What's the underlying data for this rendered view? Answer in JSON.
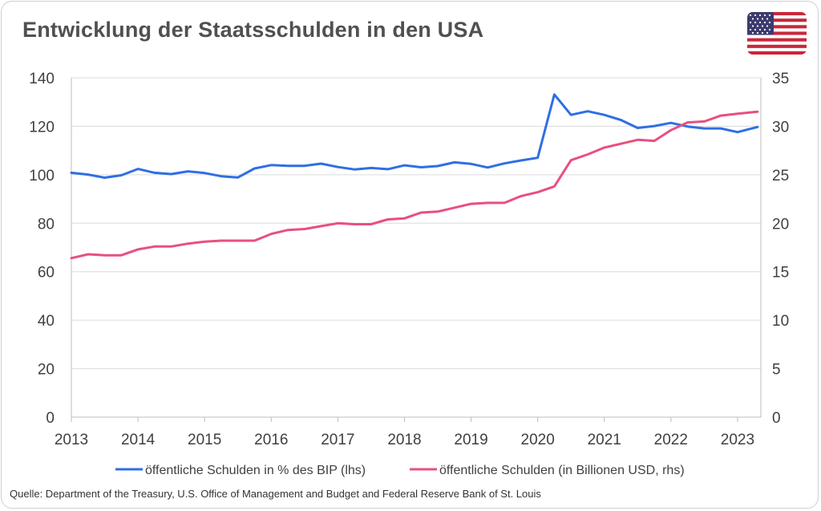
{
  "header": {
    "title": "Entwicklung der Staatsschulden in den USA",
    "flag_icon": "us-flag-icon"
  },
  "footer": {
    "source": "Quelle: Department of the Treasury, U.S. Office of Management and Budget and Federal Reserve Bank of St. Louis"
  },
  "chart_data": {
    "type": "line",
    "title": "Entwicklung der Staatsschulden in den USA",
    "x_ticks": [
      "2013",
      "2014",
      "2015",
      "2016",
      "2017",
      "2018",
      "2019",
      "2020",
      "2021",
      "2022",
      "2023"
    ],
    "x_range": [
      2013,
      2023.35
    ],
    "y_left": {
      "range": [
        0,
        140
      ],
      "ticks": [
        "0",
        "20",
        "40",
        "60",
        "80",
        "100",
        "120",
        "140"
      ]
    },
    "y_right": {
      "range": [
        0,
        35
      ],
      "ticks": [
        "0",
        "5",
        "10",
        "15",
        "20",
        "25",
        "30",
        "35"
      ]
    },
    "grid": true,
    "legend_position": "bottom",
    "series": [
      {
        "name": "öffentliche Schulden in % des BIP (lhs)",
        "axis": "left",
        "color": "#2f6fe3",
        "x": [
          2013.0,
          2013.25,
          2013.5,
          2013.75,
          2014.0,
          2014.25,
          2014.5,
          2014.75,
          2015.0,
          2015.25,
          2015.5,
          2015.75,
          2016.0,
          2016.25,
          2016.5,
          2016.75,
          2017.0,
          2017.25,
          2017.5,
          2017.75,
          2018.0,
          2018.25,
          2018.5,
          2018.75,
          2019.0,
          2019.25,
          2019.5,
          2019.75,
          2020.0,
          2020.25,
          2020.5,
          2020.75,
          2021.0,
          2021.25,
          2021.5,
          2021.75,
          2022.0,
          2022.25,
          2022.5,
          2022.75,
          2023.0,
          2023.3
        ],
        "values": [
          100.8,
          100.1,
          98.8,
          99.8,
          102.4,
          100.8,
          100.3,
          101.4,
          100.7,
          99.4,
          98.9,
          102.6,
          104.0,
          103.7,
          103.7,
          104.6,
          103.2,
          102.2,
          102.8,
          102.3,
          103.9,
          103.1,
          103.6,
          105.1,
          104.5,
          103.0,
          104.7,
          105.9,
          107.0,
          133.1,
          124.7,
          126.2,
          124.7,
          122.6,
          119.3,
          120.1,
          121.4,
          119.9,
          119.1,
          119.1,
          117.6,
          119.7
        ]
      },
      {
        "name": "öffentliche Schulden (in Billionen USD, rhs)",
        "axis": "right",
        "color": "#e8507e",
        "x": [
          2013.0,
          2013.25,
          2013.5,
          2013.75,
          2014.0,
          2014.25,
          2014.5,
          2014.75,
          2015.0,
          2015.25,
          2015.5,
          2015.75,
          2016.0,
          2016.25,
          2016.5,
          2016.75,
          2017.0,
          2017.25,
          2017.5,
          2017.75,
          2018.0,
          2018.25,
          2018.5,
          2018.75,
          2019.0,
          2019.25,
          2019.5,
          2019.75,
          2020.0,
          2020.25,
          2020.5,
          2020.75,
          2021.0,
          2021.25,
          2021.5,
          2021.75,
          2022.0,
          2022.25,
          2022.5,
          2022.75,
          2023.0,
          2023.3
        ],
        "values": [
          16.4,
          16.8,
          16.7,
          16.7,
          17.3,
          17.6,
          17.6,
          17.9,
          18.1,
          18.2,
          18.2,
          18.2,
          18.9,
          19.3,
          19.4,
          19.7,
          20.0,
          19.9,
          19.9,
          20.4,
          20.5,
          21.1,
          21.2,
          21.6,
          22.0,
          22.1,
          22.1,
          22.8,
          23.2,
          23.8,
          26.5,
          27.1,
          27.8,
          28.2,
          28.6,
          28.5,
          29.6,
          30.4,
          30.5,
          31.1,
          31.3,
          31.5
        ]
      }
    ]
  }
}
